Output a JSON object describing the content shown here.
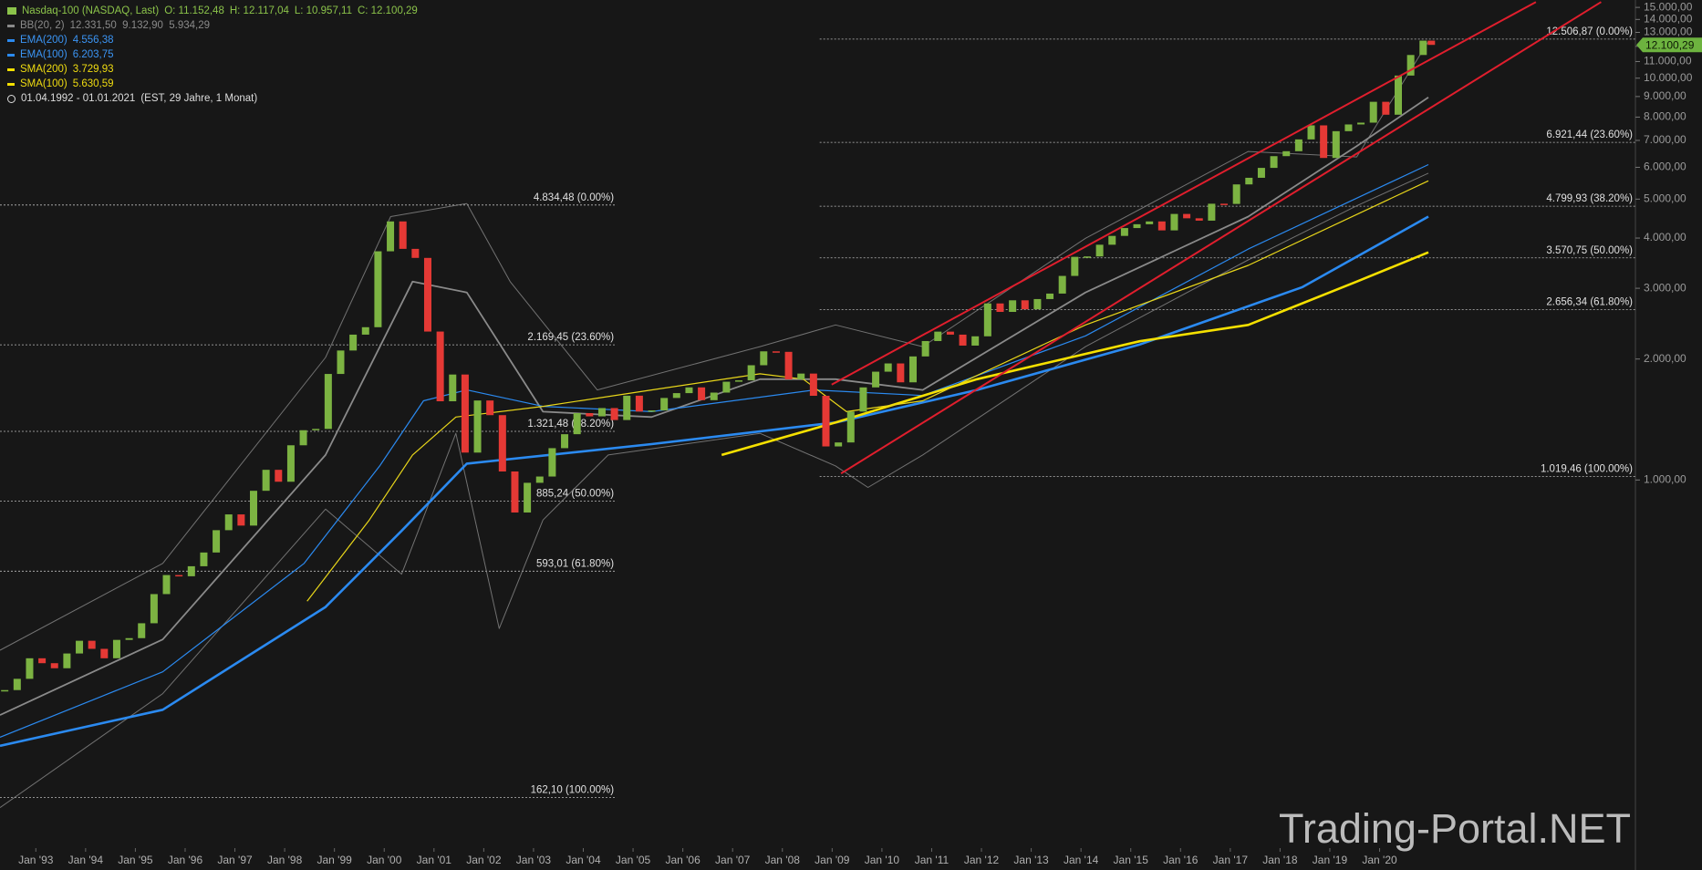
{
  "chart_data": {
    "type": "candlestick",
    "title": "Nasdaq-100 (NASDAQ, Last)",
    "ohlc_labels": [
      "O: 11.152,48",
      "H: 12.117,04",
      "L: 10.957,11",
      "C: 12.100,29"
    ],
    "period": "01.04.1992 - 01.01.2021",
    "period_note": "(EST, 29 Jahre, 1 Monat)",
    "watermark": "Trading-Portal.NET",
    "log_scale": true,
    "up_color": "#7cb342",
    "down_color": "#e53935",
    "x": [
      1992.375,
      1992.625,
      1992.875,
      1993.125,
      1993.375,
      1993.625,
      1993.875,
      1994.125,
      1994.375,
      1994.625,
      1994.875,
      1995.125,
      1995.375,
      1995.625,
      1995.875,
      1996.125,
      1996.375,
      1996.625,
      1996.875,
      1997.125,
      1997.375,
      1997.625,
      1997.875,
      1998.125,
      1998.375,
      1998.625,
      1998.875,
      1999.125,
      1999.375,
      1999.625,
      1999.875,
      2000.125,
      2000.375,
      2000.625,
      2000.875,
      2001.125,
      2001.375,
      2001.625,
      2001.875,
      2002.125,
      2002.375,
      2002.625,
      2002.875,
      2003.125,
      2003.375,
      2003.625,
      2003.875,
      2004.125,
      2004.375,
      2004.625,
      2004.875,
      2005.125,
      2005.375,
      2005.625,
      2005.875,
      2006.125,
      2006.375,
      2006.625,
      2006.875,
      2007.125,
      2007.375,
      2007.625,
      2007.875,
      2008.125,
      2008.375,
      2008.625,
      2008.875,
      2009.125,
      2009.375,
      2009.625,
      2009.875,
      2010.125,
      2010.375,
      2010.625,
      2010.875,
      2011.125,
      2011.375,
      2011.625,
      2011.875,
      2012.125,
      2012.375,
      2012.625,
      2012.875,
      2013.125,
      2013.375,
      2013.625,
      2013.875,
      2014.125,
      2014.375,
      2014.625,
      2014.875,
      2015.125,
      2015.375,
      2015.625,
      2015.875,
      2016.125,
      2016.375,
      2016.625,
      2016.875,
      2017.125,
      2017.375,
      2017.625,
      2017.875,
      2018.125,
      2018.375,
      2018.625,
      2018.875,
      2019.125,
      2019.375,
      2019.625,
      2019.875,
      2020.125,
      2020.375,
      2020.625,
      2020.875,
      2021.04
    ],
    "close": [
      300,
      320,
      360,
      350,
      340,
      370,
      398,
      380,
      360,
      400,
      404,
      440,
      520,
      580,
      576,
      610,
      660,
      750,
      821,
      770,
      940,
      1060,
      990,
      1220,
      1330,
      1340,
      1836,
      2100,
      2300,
      2400,
      3708,
      4400,
      3760,
      3570,
      2341,
      1570,
      1830,
      1170,
      1577,
      1450,
      1050,
      830,
      984,
      1020,
      1200,
      1300,
      1467,
      1440,
      1510,
      1410,
      1621,
      1480,
      1490,
      1600,
      1645,
      1700,
      1580,
      1650,
      1756,
      1770,
      1930,
      2090,
      2084,
      1780,
      1840,
      1620,
      1212,
      1240,
      1480,
      1700,
      1860,
      1950,
      1750,
      2030,
      2217,
      2340,
      2300,
      2160,
      2278,
      2750,
      2620,
      2800,
      2660,
      2820,
      2910,
      3220,
      3592,
      3600,
      3850,
      4050,
      4236,
      4330,
      4400,
      4180,
      4593,
      4480,
      4420,
      4870,
      4864,
      5440,
      5650,
      5980,
      6396,
      6580,
      7040,
      7630,
      6330,
      7380,
      7670,
      7750,
      8733,
      8110,
      10150,
      11420,
      12400,
      12100.29
    ],
    "last_label": "12.100,29",
    "bb": {
      "name": "BB(20, 2)",
      "last": "12.331,50  9.132,90  5.934,29",
      "color": "#8a8a8a",
      "upper": {
        "x": [
          1992.28,
          1995.55,
          1998.82,
          2000.13,
          2001.66,
          2002.53,
          2004.28,
          2007.55,
          2009.07,
          2010.82,
          2014.09,
          2017.36,
          2019.54,
          2020.98
        ],
        "values": [
          377,
          620,
          2018,
          4523,
          4874,
          3117,
          1675,
          2147,
          2431,
          2147,
          3995,
          6568,
          6367,
          12340
        ]
      },
      "middle": {
        "x": [
          1992.28,
          1995.55,
          1998.82,
          2000.57,
          2001.66,
          2003.19,
          2005.37,
          2007.55,
          2009.07,
          2010.82,
          2014.09,
          2017.36,
          2019.54,
          2020.98
        ],
        "values": [
          260,
          401,
          1154,
          3117,
          2929,
          1479,
          1434,
          1782,
          1782,
          1675,
          2929,
          4523,
          6774,
          8962
        ]
      },
      "lower": {
        "x": [
          1992.28,
          1995.55,
          1998.82,
          2000.35,
          2001.44,
          2002.31,
          2003.19,
          2004.5,
          2007.55,
          2009.07,
          2009.72,
          2010.82,
          2014.09,
          2017.36,
          2019.54,
          2020.98
        ],
        "values": [
          153,
          294,
          846,
          583,
          1306,
          427,
          795,
          1154,
          1306,
          1084,
          958,
          1154,
          2147,
          3529,
          4812,
          5800
        ]
      }
    },
    "indicators": [
      {
        "name": "EMA(200)",
        "last": "4.556,38",
        "color": "#2b8af0",
        "width": 2.6,
        "x": [
          1992.28,
          1995.55,
          1998.82,
          2000.35,
          2001.66,
          2005.37,
          2009.07,
          2011.91,
          2015.18,
          2018.45,
          2020.98
        ],
        "values": [
          218,
          268,
          483,
          747,
          1098,
          1228,
          1390,
          1675,
          2173,
          3021,
          4523
        ]
      },
      {
        "name": "EMA(100)",
        "last": "6.203,75",
        "color": "#2b8af0",
        "width": 1.2,
        "x": [
          1992.28,
          1995.55,
          1998.39,
          1999.91,
          2000.79,
          2001.66,
          2003.19,
          2005.37,
          2008.64,
          2010.82,
          2014.09,
          2017.36,
          2020.98
        ],
        "values": [
          229,
          333,
          620,
          1084,
          1574,
          1675,
          1525,
          1479,
          1675,
          1623,
          2284,
          3755,
          6093
        ]
      },
      {
        "name": "SMA(200)",
        "last": "3.729,93",
        "color": "#f5e000",
        "width": 2.6,
        "x": [
          2006.78,
          2009.07,
          2011.91,
          2015.18,
          2017.36,
          2019.54,
          2020.98
        ],
        "values": [
          1154,
          1390,
          1782,
          2214,
          2431,
          3117,
          3685
        ]
      },
      {
        "name": "SMA(100)",
        "last": "5.630,59",
        "color": "#e8d61a",
        "width": 1.2,
        "x": [
          1998.45,
          1999.7,
          2000.57,
          2001.44,
          2003.19,
          2005.37,
          2007.55,
          2008.42,
          2009.29,
          2010.82,
          2014.09,
          2017.36,
          2020.98
        ],
        "values": [
          499,
          795,
          1154,
          1434,
          1525,
          1675,
          1838,
          1782,
          1479,
          1574,
          2431,
          3420,
          5553
        ]
      }
    ],
    "trend_color": "#e01e2d",
    "trendlines": [
      {
        "x": [
          2008.99,
          2023.14
        ],
        "values": [
          1728,
          15470
        ]
      },
      {
        "x": [
          2009.18,
          2024.45
        ],
        "values": [
          1038,
          15470
        ]
      }
    ],
    "fibonacci": [
      {
        "x": [
          1992.28,
          2004.67
        ],
        "levels": [
          {
            "value": 4834.48,
            "label": "4.834,48 (0.00%)"
          },
          {
            "value": 2169.45,
            "label": "2.169,45 (23.60%)"
          },
          {
            "value": 1321.48,
            "label": "1.321,48 (38.20%)"
          },
          {
            "value": 885.24,
            "label": "885,24 (50.00%)"
          },
          {
            "value": 593.01,
            "label": "593,01 (61.80%)"
          },
          {
            "value": 162.1,
            "label": "162,10 (100.00%)"
          }
        ]
      },
      {
        "x": [
          2008.75,
          2025.14
        ],
        "levels": [
          {
            "value": 12506.87,
            "label": "12.506,87 (0.00%)"
          },
          {
            "value": 6921.44,
            "label": "6.921,44 (23.60%)"
          },
          {
            "value": 4799.93,
            "label": "4.799,93 (38.20%)"
          },
          {
            "value": 3570.75,
            "label": "3.570,75 (50.00%)"
          },
          {
            "value": 2656.34,
            "label": "2.656,34 (61.80%)"
          },
          {
            "value": 1019.46,
            "label": "1.019,46 (100.00%)"
          }
        ]
      }
    ],
    "xlim": [
      1992.28,
      2025.14
    ],
    "ylim": [
      107,
      15650
    ],
    "xticks": [
      {
        "value": 1993,
        "label": "Jan '93"
      },
      {
        "value": 1994,
        "label": "Jan '94"
      },
      {
        "value": 1995,
        "label": "Jan '95"
      },
      {
        "value": 1996,
        "label": "Jan '96"
      },
      {
        "value": 1997,
        "label": "Jan '97"
      },
      {
        "value": 1998,
        "label": "Jan '98"
      },
      {
        "value": 1999,
        "label": "Jan '99"
      },
      {
        "value": 2000,
        "label": "Jan '00"
      },
      {
        "value": 2001,
        "label": "Jan '01"
      },
      {
        "value": 2002,
        "label": "Jan '02"
      },
      {
        "value": 2003,
        "label": "Jan '03"
      },
      {
        "value": 2004,
        "label": "Jan '04"
      },
      {
        "value": 2005,
        "label": "Jan '05"
      },
      {
        "value": 2006,
        "label": "Jan '06"
      },
      {
        "value": 2007,
        "label": "Jan '07"
      },
      {
        "value": 2008,
        "label": "Jan '08"
      },
      {
        "value": 2009,
        "label": "Jan '09"
      },
      {
        "value": 2010,
        "label": "Jan '10"
      },
      {
        "value": 2011,
        "label": "Jan '11"
      },
      {
        "value": 2012,
        "label": "Jan '12"
      },
      {
        "value": 2013,
        "label": "Jan '13"
      },
      {
        "value": 2014,
        "label": "Jan '14"
      },
      {
        "value": 2015,
        "label": "Jan '15"
      },
      {
        "value": 2016,
        "label": "Jan '16"
      },
      {
        "value": 2017,
        "label": "Jan '17"
      },
      {
        "value": 2018,
        "label": "Jan '18"
      },
      {
        "value": 2019,
        "label": "Jan '19"
      },
      {
        "value": 2020,
        "label": "Jan '20"
      }
    ],
    "yticks": [
      {
        "value": 1000,
        "label": "1.000,00"
      },
      {
        "value": 2000,
        "label": "2.000,00"
      },
      {
        "value": 3000,
        "label": "3.000,00"
      },
      {
        "value": 4000,
        "label": "4.000,00"
      },
      {
        "value": 5000,
        "label": "5.000,00"
      },
      {
        "value": 6000,
        "label": "6.000,00"
      },
      {
        "value": 7000,
        "label": "7.000,00"
      },
      {
        "value": 8000,
        "label": "8.000,00"
      },
      {
        "value": 9000,
        "label": "9.000,00"
      },
      {
        "value": 10000,
        "label": "10.000,00"
      },
      {
        "value": 11000,
        "label": "11.000,00"
      },
      {
        "value": 12000,
        "label": "12.000,00"
      },
      {
        "value": 13000,
        "label": "13.000,00"
      },
      {
        "value": 14000,
        "label": "14.000,00"
      },
      {
        "value": 15000,
        "label": "15.000,00"
      }
    ]
  }
}
